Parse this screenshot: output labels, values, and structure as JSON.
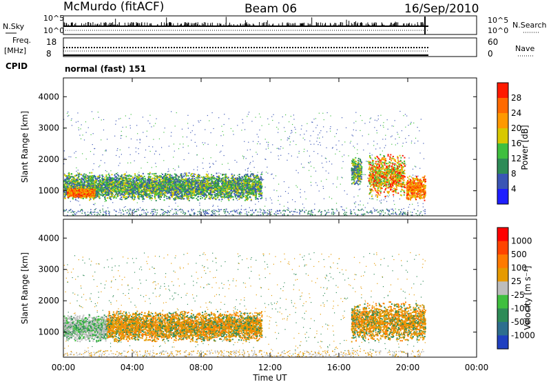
{
  "header": {
    "station": "McMurdo (fitACF)",
    "beam": "Beam 06",
    "date": "16/Sep/2010"
  },
  "strip_labels": {
    "nsky": "N.Sky",
    "nsearch": "N.Search",
    "freq_line1": "Freq.",
    "freq_line2": "[MHz]",
    "nave": "Nave",
    "cpid": "CPID",
    "cpid_value": "normal (fast) 151"
  },
  "strip_ticks": {
    "nsky_top": "10^5",
    "nsky_bottom": "10^0",
    "nsearch_top": "10^5",
    "nsearch_bottom": "10^0",
    "freq_top": "18",
    "freq_bottom": "8",
    "nave_top": "60",
    "nave_bottom": "0"
  },
  "x_axis": {
    "label": "Time UT",
    "ticks": [
      "00:00",
      "04:00",
      "08:00",
      "12:00",
      "16:00",
      "20:00",
      "00:00"
    ]
  },
  "colors": {
    "power": [
      "#1e1eff",
      "#3a55b5",
      "#2e8b57",
      "#3fbf3f",
      "#d8c800",
      "#ff9900",
      "#ff6a00",
      "#ff1a00"
    ],
    "velocity": [
      "#2040c0",
      "#2e6e8e",
      "#2e8b57",
      "#3fbf3f",
      "#bdbdbd",
      "#e69a00",
      "#ff7a00",
      "#ff4400",
      "#ff0000"
    ]
  },
  "chart_data": [
    {
      "type": "heatmap",
      "panel": "power",
      "ylabel": "Slant Range [km]",
      "yticks": [
        "1000",
        "2000",
        "3000",
        "4000"
      ],
      "ylim": [
        200,
        4600
      ],
      "xlim_hours": [
        0,
        24
      ],
      "colorbar_label": "Power [dB]",
      "colorbar_ticks": [
        "4",
        "8",
        "12",
        "16",
        "20",
        "24",
        "28"
      ],
      "regions": [
        {
          "t_start": 0.0,
          "t_end": 11.5,
          "range_low": 700,
          "range_high": 1600,
          "level": "medium"
        },
        {
          "t_start": 0.2,
          "t_end": 1.8,
          "range_low": 800,
          "range_high": 1100,
          "level": "high"
        },
        {
          "t_start": 16.7,
          "t_end": 17.3,
          "range_low": 1200,
          "range_high": 2100,
          "level": "medium"
        },
        {
          "t_start": 17.7,
          "t_end": 19.8,
          "range_low": 800,
          "range_high": 2200,
          "level": "medium-high"
        },
        {
          "t_start": 19.9,
          "t_end": 21.0,
          "range_low": 700,
          "range_high": 1500,
          "level": "high"
        }
      ]
    },
    {
      "type": "heatmap",
      "panel": "velocity",
      "ylabel": "Slant Range [km]",
      "yticks": [
        "1000",
        "2000",
        "3000",
        "4000"
      ],
      "ylim": [
        200,
        4600
      ],
      "xlim_hours": [
        0,
        24
      ],
      "colorbar_label": "Velocity [m s⁻¹]",
      "colorbar_ticks": [
        "1000",
        "500",
        "100",
        "25",
        "-25",
        "-100",
        "-500",
        "-1000"
      ],
      "regions": [
        {
          "t_start": 0.0,
          "t_end": 2.5,
          "range_low": 700,
          "range_high": 1600,
          "level": "near zero to positive"
        },
        {
          "t_start": 2.5,
          "t_end": 11.5,
          "range_low": 700,
          "range_high": 1700,
          "level": "negative"
        },
        {
          "t_start": 16.7,
          "t_end": 21.0,
          "range_low": 700,
          "range_high": 2000,
          "level": "negative"
        }
      ]
    }
  ]
}
